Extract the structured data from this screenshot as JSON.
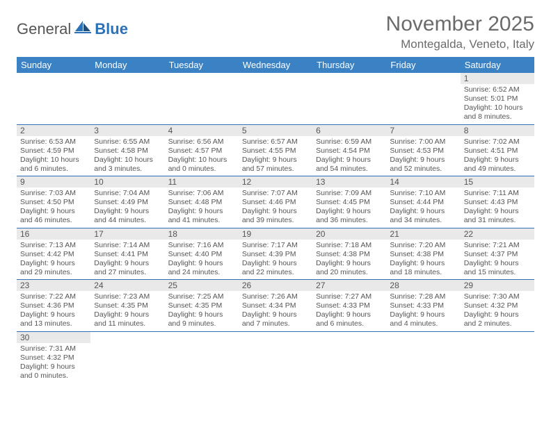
{
  "logo": {
    "text1": "General",
    "text2": "Blue"
  },
  "title": "November 2025",
  "location": "Montegalda, Veneto, Italy",
  "columns": [
    "Sunday",
    "Monday",
    "Tuesday",
    "Wednesday",
    "Thursday",
    "Friday",
    "Saturday"
  ],
  "colors": {
    "header_bg": "#3b82c4",
    "border": "#2d72b8",
    "daynum_bg": "#e9e9e9",
    "text": "#555555"
  },
  "weeks": [
    [
      null,
      null,
      null,
      null,
      null,
      null,
      {
        "n": "1",
        "sr": "6:52 AM",
        "ss": "5:01 PM",
        "dl": "10 hours and 8 minutes."
      }
    ],
    [
      {
        "n": "2",
        "sr": "6:53 AM",
        "ss": "4:59 PM",
        "dl": "10 hours and 6 minutes."
      },
      {
        "n": "3",
        "sr": "6:55 AM",
        "ss": "4:58 PM",
        "dl": "10 hours and 3 minutes."
      },
      {
        "n": "4",
        "sr": "6:56 AM",
        "ss": "4:57 PM",
        "dl": "10 hours and 0 minutes."
      },
      {
        "n": "5",
        "sr": "6:57 AM",
        "ss": "4:55 PM",
        "dl": "9 hours and 57 minutes."
      },
      {
        "n": "6",
        "sr": "6:59 AM",
        "ss": "4:54 PM",
        "dl": "9 hours and 54 minutes."
      },
      {
        "n": "7",
        "sr": "7:00 AM",
        "ss": "4:53 PM",
        "dl": "9 hours and 52 minutes."
      },
      {
        "n": "8",
        "sr": "7:02 AM",
        "ss": "4:51 PM",
        "dl": "9 hours and 49 minutes."
      }
    ],
    [
      {
        "n": "9",
        "sr": "7:03 AM",
        "ss": "4:50 PM",
        "dl": "9 hours and 46 minutes."
      },
      {
        "n": "10",
        "sr": "7:04 AM",
        "ss": "4:49 PM",
        "dl": "9 hours and 44 minutes."
      },
      {
        "n": "11",
        "sr": "7:06 AM",
        "ss": "4:48 PM",
        "dl": "9 hours and 41 minutes."
      },
      {
        "n": "12",
        "sr": "7:07 AM",
        "ss": "4:46 PM",
        "dl": "9 hours and 39 minutes."
      },
      {
        "n": "13",
        "sr": "7:09 AM",
        "ss": "4:45 PM",
        "dl": "9 hours and 36 minutes."
      },
      {
        "n": "14",
        "sr": "7:10 AM",
        "ss": "4:44 PM",
        "dl": "9 hours and 34 minutes."
      },
      {
        "n": "15",
        "sr": "7:11 AM",
        "ss": "4:43 PM",
        "dl": "9 hours and 31 minutes."
      }
    ],
    [
      {
        "n": "16",
        "sr": "7:13 AM",
        "ss": "4:42 PM",
        "dl": "9 hours and 29 minutes."
      },
      {
        "n": "17",
        "sr": "7:14 AM",
        "ss": "4:41 PM",
        "dl": "9 hours and 27 minutes."
      },
      {
        "n": "18",
        "sr": "7:16 AM",
        "ss": "4:40 PM",
        "dl": "9 hours and 24 minutes."
      },
      {
        "n": "19",
        "sr": "7:17 AM",
        "ss": "4:39 PM",
        "dl": "9 hours and 22 minutes."
      },
      {
        "n": "20",
        "sr": "7:18 AM",
        "ss": "4:38 PM",
        "dl": "9 hours and 20 minutes."
      },
      {
        "n": "21",
        "sr": "7:20 AM",
        "ss": "4:38 PM",
        "dl": "9 hours and 18 minutes."
      },
      {
        "n": "22",
        "sr": "7:21 AM",
        "ss": "4:37 PM",
        "dl": "9 hours and 15 minutes."
      }
    ],
    [
      {
        "n": "23",
        "sr": "7:22 AM",
        "ss": "4:36 PM",
        "dl": "9 hours and 13 minutes."
      },
      {
        "n": "24",
        "sr": "7:23 AM",
        "ss": "4:35 PM",
        "dl": "9 hours and 11 minutes."
      },
      {
        "n": "25",
        "sr": "7:25 AM",
        "ss": "4:35 PM",
        "dl": "9 hours and 9 minutes."
      },
      {
        "n": "26",
        "sr": "7:26 AM",
        "ss": "4:34 PM",
        "dl": "9 hours and 7 minutes."
      },
      {
        "n": "27",
        "sr": "7:27 AM",
        "ss": "4:33 PM",
        "dl": "9 hours and 6 minutes."
      },
      {
        "n": "28",
        "sr": "7:28 AM",
        "ss": "4:33 PM",
        "dl": "9 hours and 4 minutes."
      },
      {
        "n": "29",
        "sr": "7:30 AM",
        "ss": "4:32 PM",
        "dl": "9 hours and 2 minutes."
      }
    ],
    [
      {
        "n": "30",
        "sr": "7:31 AM",
        "ss": "4:32 PM",
        "dl": "9 hours and 0 minutes."
      },
      null,
      null,
      null,
      null,
      null,
      null
    ]
  ],
  "labels": {
    "sunrise": "Sunrise:",
    "sunset": "Sunset:",
    "daylight": "Daylight:"
  }
}
